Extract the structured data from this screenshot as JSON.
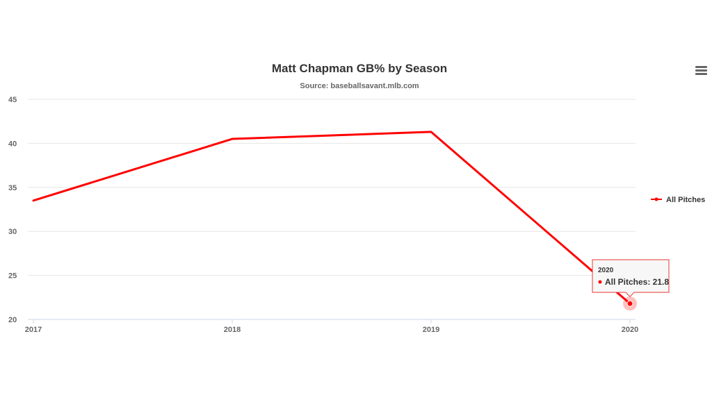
{
  "menu": {
    "icon": "hamburger-menu-icon"
  },
  "chart_data": {
    "type": "line",
    "title": "Matt Chapman GB% by Season",
    "subtitle": "Source: baseballsavant.mlb.com",
    "xlabel": "",
    "ylabel": "",
    "categories": [
      "2017",
      "2018",
      "2019",
      "2020"
    ],
    "ylim": [
      20,
      45
    ],
    "yticks": [
      20,
      25,
      30,
      35,
      40,
      45
    ],
    "grid": true,
    "legend_position": "right",
    "series": [
      {
        "name": "All Pitches",
        "color": "#ff0000",
        "values": [
          33.5,
          40.5,
          41.3,
          21.8
        ]
      }
    ],
    "tooltip": {
      "category": "2020",
      "series_label": "All Pitches: 21.8",
      "border_color": "#e53935"
    }
  }
}
